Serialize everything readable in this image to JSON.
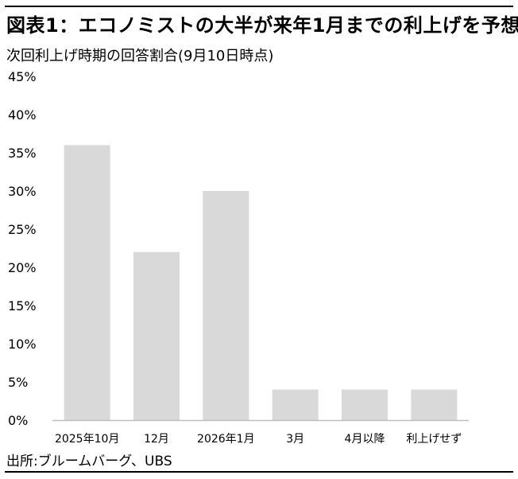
{
  "header": {
    "title": "図表1：エコノミストの大半が来年1月までの利上げを予想",
    "subtitle": "次回利上げ時期の回答割合(9月10日時点)"
  },
  "footer": {
    "source": "出所:ブルームバーグ、UBS"
  },
  "chart_data": {
    "type": "bar",
    "categories": [
      "2025年10月",
      "12月",
      "2026年1月",
      "3月",
      "4月以降",
      "利上げせず"
    ],
    "values": [
      36,
      22,
      30,
      4,
      4,
      4
    ],
    "ylim": [
      0,
      45
    ],
    "yticks": [
      "0%",
      "5%",
      "10%",
      "15%",
      "20%",
      "25%",
      "30%",
      "35%",
      "40%",
      "45%"
    ],
    "bar_color": "#d9d9d9",
    "grid": false
  }
}
